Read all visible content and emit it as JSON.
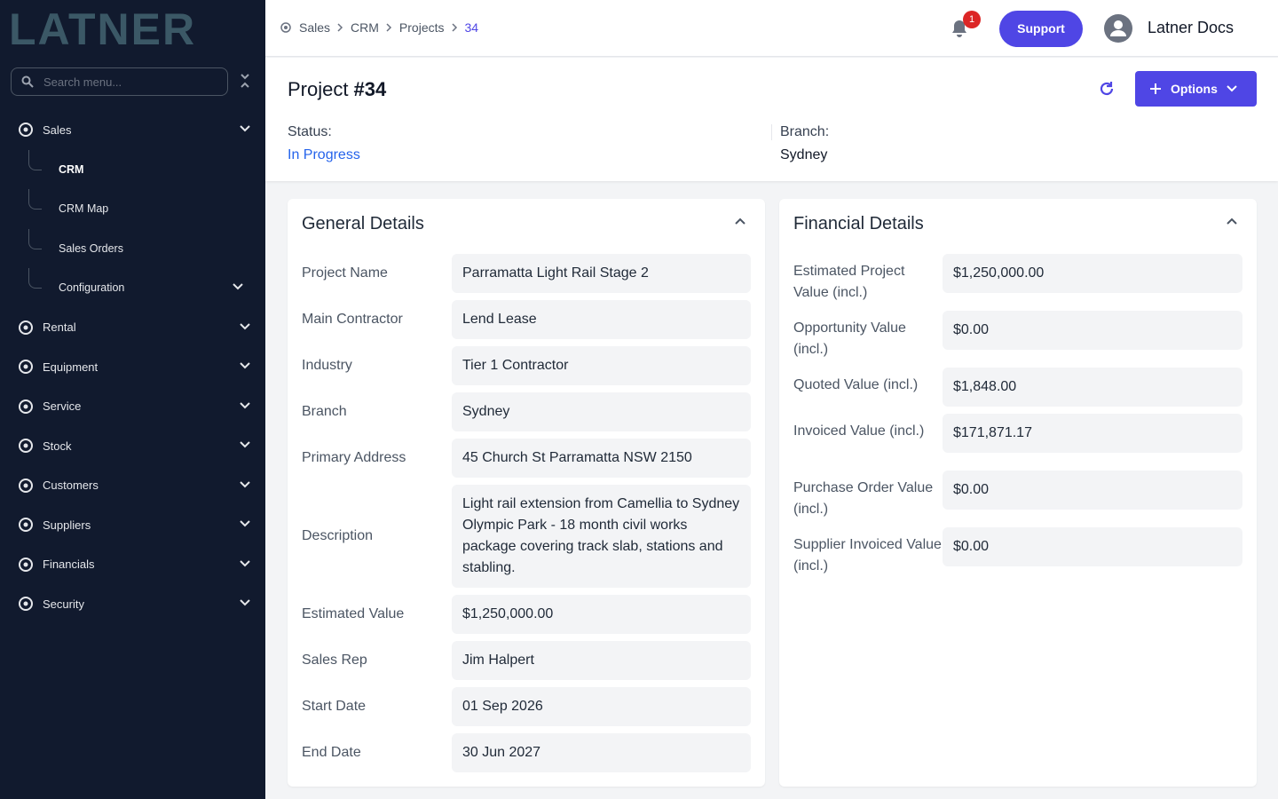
{
  "logo": "LATNER",
  "sidebar": {
    "search_placeholder": "Search menu...",
    "items": [
      {
        "label": "Sales",
        "children": [
          "CRM",
          "CRM Map",
          "Sales Orders",
          "Configuration"
        ]
      },
      {
        "label": "Rental"
      },
      {
        "label": "Equipment"
      },
      {
        "label": "Service"
      },
      {
        "label": "Stock"
      },
      {
        "label": "Customers"
      },
      {
        "label": "Suppliers"
      },
      {
        "label": "Financials"
      },
      {
        "label": "Security"
      }
    ]
  },
  "breadcrumb": [
    "Sales",
    "CRM",
    "Projects",
    "34"
  ],
  "topbar": {
    "notifications": 1,
    "support": "Support",
    "user": "Latner Docs"
  },
  "header": {
    "title": "Project",
    "number": "#34",
    "options": "Options",
    "status_label": "Status:",
    "status": "In Progress",
    "branch_label": "Branch:",
    "branch": "Sydney"
  },
  "general": {
    "title": "General Details",
    "fields": [
      {
        "label": "Project Name",
        "value": "Parramatta Light Rail Stage 2"
      },
      {
        "label": "Main Contractor",
        "value": "Lend Lease"
      },
      {
        "label": "Industry",
        "value": "Tier 1 Contractor"
      },
      {
        "label": "Branch",
        "value": "Sydney"
      },
      {
        "label": "Primary Address",
        "value": "45 Church St Parramatta NSW 2150"
      },
      {
        "label": "Description",
        "value": "Light rail extension from Camellia to Sydney Olympic Park - 18 month civil works package covering track slab, stations and stabling."
      },
      {
        "label": "Estimated Value",
        "value": "$1,250,000.00"
      },
      {
        "label": "Sales Rep",
        "value": "Jim Halpert"
      },
      {
        "label": "Start Date",
        "value": "01 Sep 2026"
      },
      {
        "label": "End Date",
        "value": "30 Jun 2027"
      }
    ]
  },
  "financial": {
    "title": "Financial Details",
    "fields": [
      {
        "label": "Estimated Project Value (incl.)",
        "value": "$1,250,000.00"
      },
      {
        "label": "Opportunity Value (incl.)",
        "value": "$0.00"
      },
      {
        "label": "Quoted Value (incl.)",
        "value": "$1,848.00"
      },
      {
        "label": "Invoiced Value (incl.)",
        "value": "$171,871.17"
      },
      {
        "label": "Purchase Order Value (incl.)",
        "value": "$0.00"
      },
      {
        "label": "Supplier Invoiced Value (incl.)",
        "value": "$0.00"
      }
    ]
  }
}
